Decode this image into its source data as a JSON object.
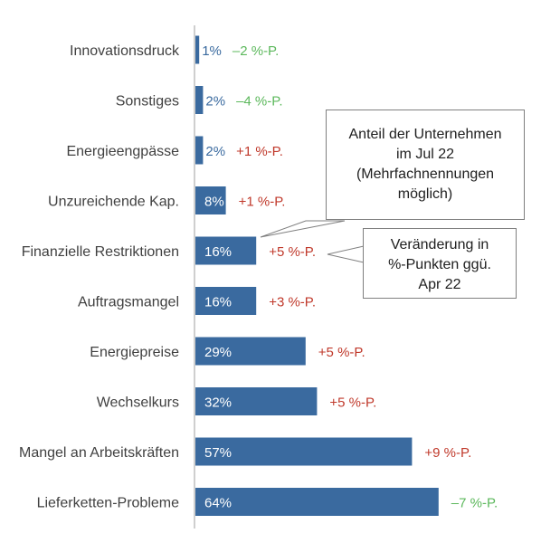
{
  "chart_data": {
    "type": "bar",
    "orientation": "horizontal",
    "categories": [
      "Innovationsdruck",
      "Sonstiges",
      "Energieengpässe",
      "Unzureichende Kap.",
      "Finanzielle Restriktionen",
      "Auftragsmangel",
      "Energiepreise",
      "Wechselkurs",
      "Mangel an Arbeitskräften",
      "Lieferketten-Probleme"
    ],
    "value_labels": [
      "1%",
      "2%",
      "2%",
      "8%",
      "16%",
      "16%",
      "29%",
      "32%",
      "57%",
      "64%"
    ],
    "series": [
      {
        "values": [
          1,
          2,
          2,
          8,
          16,
          16,
          29,
          32,
          57,
          64
        ]
      }
    ],
    "changes": [
      -2,
      -4,
      1,
      1,
      5,
      3,
      5,
      5,
      9,
      -7
    ],
    "change_labels": [
      "–2 %-P.",
      "–4 %-P.",
      "+1 %-P.",
      "+1 %-P.",
      "+5 %-P.",
      "+3 %-P.",
      "+5 %-P.",
      "+5 %-P.",
      "+9 %-P.",
      "–7 %-P."
    ],
    "xlim": [
      0,
      100
    ],
    "grid": false,
    "colors": {
      "bar": "#3a6a9f",
      "negative": "#5cb85c",
      "positive": "#c0392b",
      "axis": "#bfbfbf"
    }
  },
  "callouts": {
    "share": {
      "lines": [
        "Anteil der Unternehmen",
        "im Jul 22",
        "(Mehrfachnennungen",
        "möglich)"
      ]
    },
    "change": {
      "lines": [
        "Veränderung in",
        "%-Punkten ggü.",
        "Apr 22"
      ]
    }
  }
}
